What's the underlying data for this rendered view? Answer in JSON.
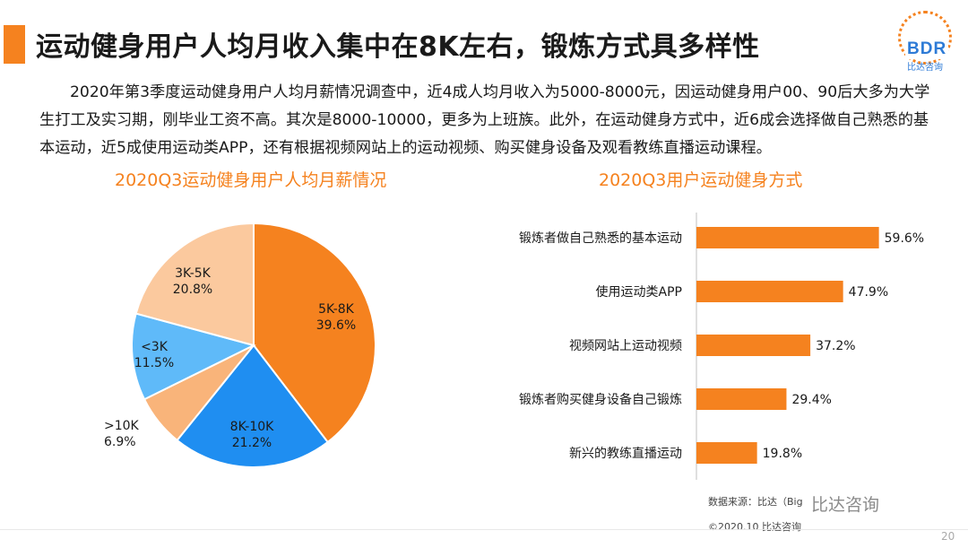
{
  "title": "运动健身用户人均月收入集中在8K左右，锻炼方式具多样性",
  "logo": {
    "text": "BDR",
    "sub": "比达咨询"
  },
  "paragraph": "2020年第3季度运动健身用户人均月薪情况调查中，近4成人均月收入为5000-8000元，因运动健身用户00、90后大多为大学生打工及实习期，刚毕业工资不高。其次是8000-10000，更多为上班族。此外，在运动健身方式中，近6成会选择做自己熟悉的基本运动，近5成使用运动类APP，还有根据视频网站上的运动视频、购买健身设备及观看教练直播运动课程。",
  "chart_data": [
    {
      "type": "pie",
      "title": "2020Q3运动健身用户人均月薪情况",
      "slices": [
        {
          "label": "5K-8K",
          "value": 39.6,
          "display": "39.6%",
          "color": "#f5821f"
        },
        {
          "label": "8K-10K",
          "value": 21.2,
          "display": "21.2%",
          "color": "#1f8ef1"
        },
        {
          "label": ">10K",
          "value": 6.9,
          "display": "6.9%",
          "color": "#f9b47a"
        },
        {
          "label": "<3K",
          "value": 11.5,
          "display": "11.5%",
          "color": "#5fbaf9"
        },
        {
          "label": "3K-5K",
          "value": 20.8,
          "display": "20.8%",
          "color": "#fbc99e"
        }
      ]
    },
    {
      "type": "bar",
      "orientation": "horizontal",
      "title": "2020Q3用户运动健身方式",
      "color": "#f5821f",
      "categories": [
        "锻炼者做自己熟悉的基本运动",
        "使用运动类APP",
        "视频网站上运动视频",
        "锻炼者购买健身设备自己锻炼",
        "新兴的教练直播运动"
      ],
      "values": [
        59.6,
        47.9,
        37.2,
        29.4,
        19.8
      ],
      "value_labels": [
        "59.6%",
        "47.9%",
        "37.2%",
        "29.4%",
        "19.8%"
      ],
      "xlim": [
        0,
        60
      ]
    }
  ],
  "footer": {
    "source": "数据来源：比达（Big",
    "watermark": "比达咨询",
    "copyright": "©2020.10 比达咨询",
    "page": "20"
  }
}
